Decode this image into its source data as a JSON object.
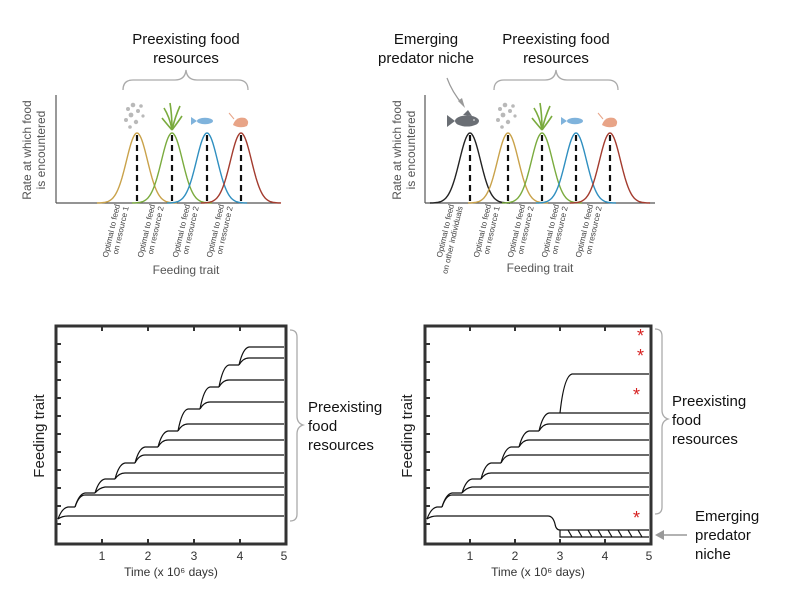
{
  "panel_a": {
    "title": [
      "Preexisting food",
      "resources"
    ],
    "ylabel": [
      "Rate at which food",
      "is encountered"
    ],
    "xlabel": "Feeding trait",
    "tick_labels": [
      [
        "Optimal to feed",
        "on resource 1"
      ],
      [
        "Optimal to feed",
        "on resource 2"
      ],
      [
        "Optimal to feed",
        "on resource 2"
      ],
      [
        "Optimal to feed",
        "on resource 2"
      ]
    ],
    "curve_colors": [
      "#c9a24a",
      "#7aab3e",
      "#2f8fc0",
      "#a33b2e"
    ],
    "icons": [
      "microbes-icon",
      "plant-icon",
      "small-fish-icon",
      "shrimp-icon"
    ]
  },
  "panel_b": {
    "title": [
      "Preexisting food",
      "resources"
    ],
    "predator_label": [
      "Emerging",
      "predator niche"
    ],
    "ylabel": [
      "Rate at which food",
      "is encountered"
    ],
    "xlabel": "Feeding trait",
    "tick_labels": [
      [
        "Optimal to feed",
        "on other individuals"
      ],
      [
        "Optimal to feed",
        "on resource 1"
      ],
      [
        "Optimal to feed",
        "on resource 2"
      ],
      [
        "Optimal to feed",
        "on resource 2"
      ],
      [
        "Optimal to feed",
        "on resource 2"
      ]
    ],
    "curve_colors": [
      "#222222",
      "#c9a24a",
      "#7aab3e",
      "#2f8fc0",
      "#a33b2e"
    ],
    "icons": [
      "predator-fish-icon",
      "microbes-icon",
      "plant-icon",
      "small-fish-icon",
      "shrimp-icon"
    ]
  },
  "panel_c": {
    "ylabel": "Feeding trait",
    "xlabel": "Time (x 10⁶ days)",
    "x_ticks": [
      "1",
      "2",
      "3",
      "4",
      "5"
    ],
    "bracket_label": [
      "Preexisting",
      "food",
      "resources"
    ]
  },
  "panel_d": {
    "ylabel": "Feeding trait",
    "xlabel": "Time (x 10⁶ days)",
    "x_ticks": [
      "1",
      "2",
      "3",
      "4",
      "5"
    ],
    "bracket_label": [
      "Preexisting",
      "food",
      "resources"
    ],
    "predator_label": [
      "Emerging",
      "predator",
      "niche"
    ],
    "star": "*"
  }
}
